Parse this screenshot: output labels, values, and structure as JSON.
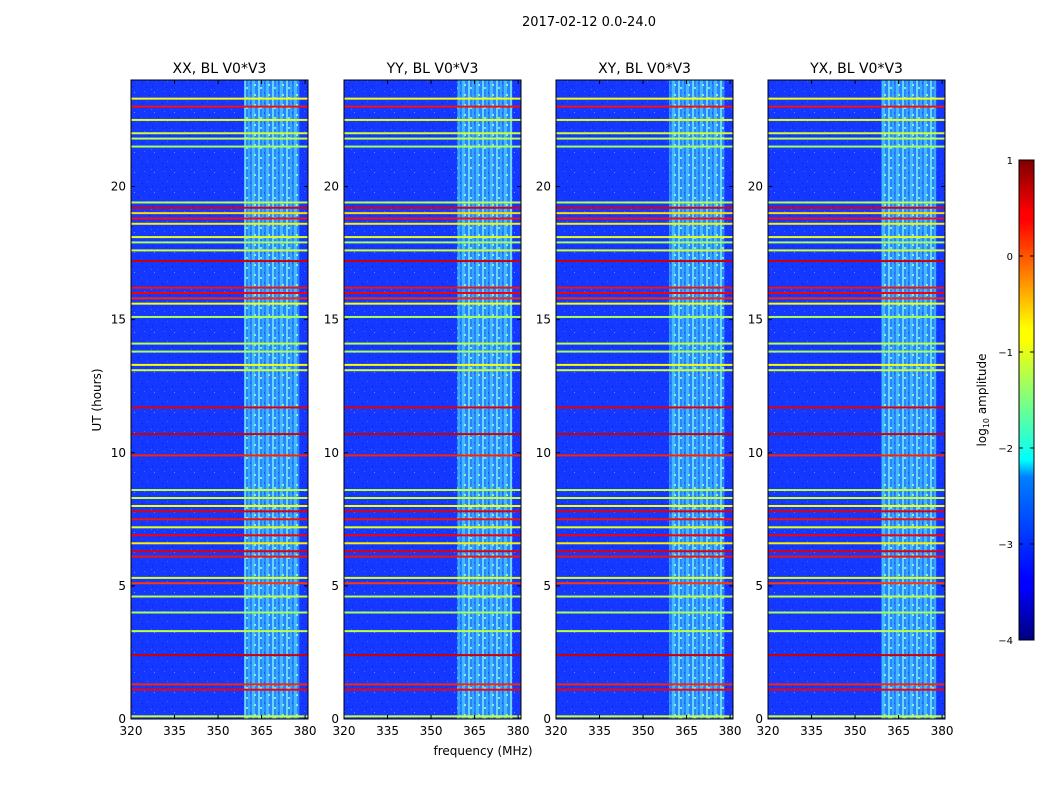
{
  "chart_data": {
    "type": "heatmap",
    "suptitle": "2017-02-12 0.0-24.0",
    "panels": [
      {
        "title": "XX, BL V0*V3"
      },
      {
        "title": "YY, BL V0*V3"
      },
      {
        "title": "XY, BL V0*V3"
      },
      {
        "title": "YX, BL V0*V3"
      }
    ],
    "xlabel": "frequency (MHz)",
    "ylabel": "UT (hours)",
    "xlim": [
      320,
      381
    ],
    "ylim": [
      0,
      24
    ],
    "xticks": [
      320,
      335,
      350,
      365,
      380
    ],
    "xtick_labels": [
      "320",
      "335",
      "350",
      "365",
      "380"
    ],
    "yticks": [
      0,
      5,
      10,
      15,
      20
    ],
    "ytick_labels": [
      "0",
      "5",
      "10",
      "15",
      "20"
    ],
    "colorbar": {
      "label_prefix": "log",
      "label_sub": "10",
      "label_suffix": " amplitude",
      "range": [
        -4,
        1
      ],
      "ticks": [
        1,
        0,
        -1,
        -2,
        -3,
        -4
      ],
      "tick_labels": [
        "1",
        "0",
        "−1",
        "−2",
        "−3",
        "−4"
      ],
      "colormap": "jet"
    },
    "rfi_band_mhz": [
      359,
      378
    ],
    "rfi_lines": [
      {
        "t": 0.1,
        "level": -1.1
      },
      {
        "t": 1.1,
        "level": 0.4
      },
      {
        "t": 1.3,
        "level": 0.2
      },
      {
        "t": 2.4,
        "level": 0.6
      },
      {
        "t": 3.3,
        "level": -1.2
      },
      {
        "t": 4.0,
        "level": -1.3
      },
      {
        "t": 4.6,
        "level": -1.2
      },
      {
        "t": 5.1,
        "level": 0.1
      },
      {
        "t": 5.3,
        "level": -1.0
      },
      {
        "t": 6.1,
        "level": 0.3
      },
      {
        "t": 6.3,
        "level": 0.5
      },
      {
        "t": 6.6,
        "level": -0.8
      },
      {
        "t": 6.9,
        "level": 0.4
      },
      {
        "t": 7.2,
        "level": -1.0
      },
      {
        "t": 7.5,
        "level": 0.3
      },
      {
        "t": 7.8,
        "level": 0.5
      },
      {
        "t": 8.0,
        "level": -0.9
      },
      {
        "t": 8.3,
        "level": -1.1
      },
      {
        "t": 8.6,
        "level": -1.2
      },
      {
        "t": 9.9,
        "level": 0.2
      },
      {
        "t": 10.7,
        "level": 0.6
      },
      {
        "t": 11.7,
        "level": 0.5
      },
      {
        "t": 13.1,
        "level": -1.1
      },
      {
        "t": 13.3,
        "level": -0.9
      },
      {
        "t": 13.8,
        "level": -1.3
      },
      {
        "t": 14.1,
        "level": -1.2
      },
      {
        "t": 15.1,
        "level": -1.3
      },
      {
        "t": 15.6,
        "level": -0.9
      },
      {
        "t": 15.8,
        "level": 0.2
      },
      {
        "t": 16.0,
        "level": 0.4
      },
      {
        "t": 16.2,
        "level": 0.3
      },
      {
        "t": 17.2,
        "level": 0.6
      },
      {
        "t": 17.6,
        "level": -1.1
      },
      {
        "t": 17.9,
        "level": -1.3
      },
      {
        "t": 18.1,
        "level": -1.0
      },
      {
        "t": 18.6,
        "level": -0.8
      },
      {
        "t": 18.8,
        "level": 0.3
      },
      {
        "t": 19.0,
        "level": -0.7
      },
      {
        "t": 19.2,
        "level": 0.5
      },
      {
        "t": 19.4,
        "level": -1.2
      },
      {
        "t": 21.5,
        "level": -1.3
      },
      {
        "t": 21.8,
        "level": -1.2
      },
      {
        "t": 22.0,
        "level": -1.1
      },
      {
        "t": 22.5,
        "level": -1.0
      },
      {
        "t": 23.0,
        "level": 0.3
      },
      {
        "t": 23.3,
        "level": -0.9
      }
    ]
  }
}
